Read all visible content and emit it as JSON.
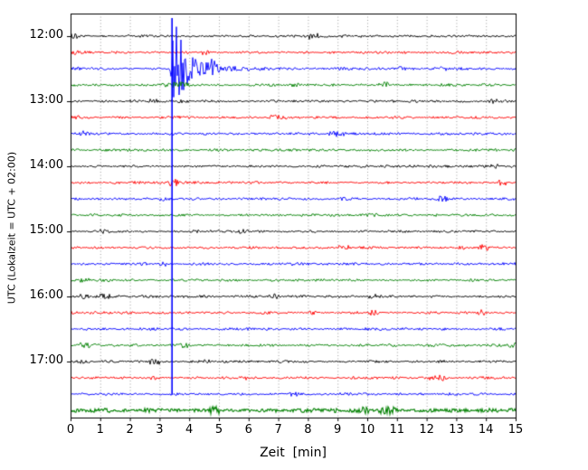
{
  "axes": {
    "xlabel": "Zeit  [min]",
    "ylabel": "UTC (Lokalzeit = UTC + 02:00)",
    "x_ticks": [
      "0",
      "1",
      "2",
      "3",
      "4",
      "5",
      "6",
      "7",
      "8",
      "9",
      "10",
      "11",
      "12",
      "13",
      "14",
      "15"
    ],
    "hour_tick_labels": [
      "12:00",
      "13:00",
      "14:00",
      "15:00",
      "16:00",
      "17:00"
    ]
  },
  "chart_data": {
    "type": "line",
    "title": "",
    "xlabel": "Zeit  [min]",
    "ylabel": "UTC (Lokalzeit = UTC + 02:00)",
    "x_range": [
      0,
      15
    ],
    "x_tick_interval_min": 1,
    "grid": {
      "vertical_dotted": true,
      "color": "#888888"
    },
    "minutes_per_trace": 15,
    "trace_color_cycle": [
      "#000000",
      "#ff0000",
      "#0000ff",
      "#008000"
    ],
    "traces": [
      {
        "start_time": "12:00",
        "color": "#000000",
        "hour_label": "12:00"
      },
      {
        "start_time": "12:15",
        "color": "#ff0000",
        "hour_label": ""
      },
      {
        "start_time": "12:30",
        "color": "#0000ff",
        "hour_label": ""
      },
      {
        "start_time": "12:45",
        "color": "#008000",
        "hour_label": ""
      },
      {
        "start_time": "13:00",
        "color": "#000000",
        "hour_label": "13:00"
      },
      {
        "start_time": "13:15",
        "color": "#ff0000",
        "hour_label": ""
      },
      {
        "start_time": "13:30",
        "color": "#0000ff",
        "hour_label": ""
      },
      {
        "start_time": "13:45",
        "color": "#008000",
        "hour_label": ""
      },
      {
        "start_time": "14:00",
        "color": "#000000",
        "hour_label": "14:00"
      },
      {
        "start_time": "14:15",
        "color": "#ff0000",
        "hour_label": ""
      },
      {
        "start_time": "14:30",
        "color": "#0000ff",
        "hour_label": ""
      },
      {
        "start_time": "14:45",
        "color": "#008000",
        "hour_label": ""
      },
      {
        "start_time": "15:00",
        "color": "#000000",
        "hour_label": "15:00"
      },
      {
        "start_time": "15:15",
        "color": "#ff0000",
        "hour_label": ""
      },
      {
        "start_time": "15:30",
        "color": "#0000ff",
        "hour_label": ""
      },
      {
        "start_time": "15:45",
        "color": "#008000",
        "hour_label": ""
      },
      {
        "start_time": "16:00",
        "color": "#000000",
        "hour_label": "16:00"
      },
      {
        "start_time": "16:15",
        "color": "#ff0000",
        "hour_label": ""
      },
      {
        "start_time": "16:30",
        "color": "#0000ff",
        "hour_label": ""
      },
      {
        "start_time": "16:45",
        "color": "#008000",
        "hour_label": ""
      },
      {
        "start_time": "17:00",
        "color": "#000000",
        "hour_label": "17:00"
      },
      {
        "start_time": "17:15",
        "color": "#ff0000",
        "hour_label": ""
      },
      {
        "start_time": "17:30",
        "color": "#0000ff",
        "hour_label": ""
      },
      {
        "start_time": "17:45",
        "color": "#008000",
        "hour_label": ""
      }
    ],
    "event": {
      "trace_start_time": "12:30",
      "trace_index": 2,
      "onset_min": 3.35,
      "peak_min": 3.45,
      "relative_peak_amplitude": 55,
      "coda_decay_min": 0.33,
      "secondary_burst_min": 4.75,
      "vertical_clip_line_min": 3.42,
      "color": "#0000ff",
      "description": "Large seismic event on the 12:30 UTC blue trace; clipped vertical line extends down through the plot at ~3.4 min"
    }
  }
}
